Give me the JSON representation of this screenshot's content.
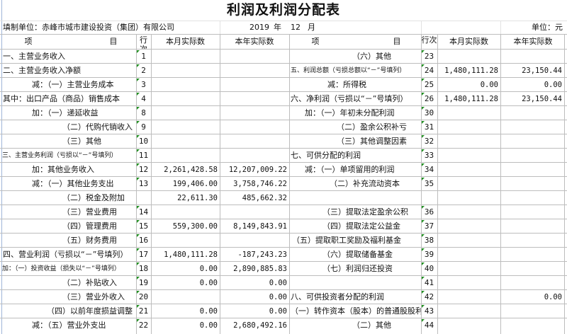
{
  "title": "利润及利润分配表",
  "info": {
    "company": "填制单位：赤峰市城市建设投资（集团）有限公司",
    "year": "2019",
    "year_label": "年",
    "month": "12",
    "month_label": "月",
    "unit": "单位：元"
  },
  "headers": {
    "item_left": "项",
    "item_right": "目",
    "row_no": "行次",
    "month_actual": "本月实际数",
    "year_actual": "本年实际数"
  },
  "left_rows": [
    {
      "label": "一、主营业务收入",
      "no": "1",
      "month": "",
      "year": ""
    },
    {
      "label": "二、主营业务收入净额",
      "no": "2",
      "month": "",
      "year": ""
    },
    {
      "label": "减：（一）主营业务成本",
      "no": "3",
      "month": "",
      "year": ""
    },
    {
      "label": "其中：出口产品（商品）销售成本",
      "no": "4",
      "month": "",
      "year": ""
    },
    {
      "label": "加：（一）递延收益",
      "no": "8",
      "month": "",
      "year": ""
    },
    {
      "label": "（二）代购代销收入",
      "no": "9",
      "month": "",
      "year": ""
    },
    {
      "label": "（三）其他",
      "no": "10",
      "month": "",
      "year": ""
    },
    {
      "label": "三、主营业务利润（亏损以“－”号填列）",
      "no": "11",
      "month": "",
      "year": ""
    },
    {
      "label": "加：其他业务收入",
      "no": "12",
      "month": "2,261,428.58",
      "year": "12,207,009.22"
    },
    {
      "label": "减：（一）其他业务支出",
      "no": "13",
      "month": "199,406.00",
      "year": "3,758,746.22"
    },
    {
      "label": "（二）税金及附加",
      "no": "",
      "month": "22,611.30",
      "year": "485,662.32"
    },
    {
      "label": "（三）营业费用",
      "no": "14",
      "month": "",
      "year": ""
    },
    {
      "label": "（四）管理费用",
      "no": "15",
      "month": "559,300.00",
      "year": "8,149,843.91"
    },
    {
      "label": "（五）财务费用",
      "no": "16",
      "month": "",
      "year": ""
    },
    {
      "label": "四、营业利润（亏损以“－”号填列）",
      "no": "17",
      "month": "1,480,111.28",
      "year": "-187,243.23"
    },
    {
      "label": "加：（一）投资收益（损失以“－”号填列）",
      "no": "18",
      "month": "0.00",
      "year": "2,890,885.83"
    },
    {
      "label": "（二）补贴收入",
      "no": "19",
      "month": "0.00",
      "year": "0.00"
    },
    {
      "label": "（三）营业外收入",
      "no": "20",
      "month": "",
      "year": "0.00"
    },
    {
      "label": "（四）以前年度损益调整",
      "no": "21",
      "month": "0.00",
      "year": "0.00"
    },
    {
      "label": "减：（五）营业外支出",
      "no": "22",
      "month": "0.00",
      "year": "2,680,492.16"
    }
  ],
  "right_rows": [
    {
      "label": "（六）其他",
      "no": "23",
      "month": "",
      "year": ""
    },
    {
      "label": "五、利润总额（亏损总额以“－”号填列）",
      "no": "24",
      "month": "1,480,111.28",
      "year": "23,150.44"
    },
    {
      "label": "减：所得税",
      "no": "25",
      "month": "0.00",
      "year": "0.00"
    },
    {
      "label": "六、净利润（亏损以“－”号填列）",
      "no": "26",
      "month": "1,480,111.28",
      "year": "23,150.44"
    },
    {
      "label": "加：（一）年初未分配利润",
      "no": "30",
      "month": "",
      "year": ""
    },
    {
      "label": "（二）盈余公积补亏",
      "no": "31",
      "month": "",
      "year": ""
    },
    {
      "label": "（三）其他调整因素",
      "no": "32",
      "month": "",
      "year": ""
    },
    {
      "label": "七、可供分配的利润",
      "no": "33",
      "month": "",
      "year": ""
    },
    {
      "label": "减：（一）单项留用的利润",
      "no": "34",
      "month": "",
      "year": ""
    },
    {
      "label": "（二）补充流动资本",
      "no": "35",
      "month": "",
      "year": ""
    },
    {
      "label": "",
      "no": "",
      "month": "",
      "year": ""
    },
    {
      "label": "（三）提取法定盈余公积",
      "no": "36",
      "month": "",
      "year": ""
    },
    {
      "label": "（四）提取法定公益金",
      "no": "37",
      "month": "",
      "year": ""
    },
    {
      "label": "（五）提取职工奖励及福利基金",
      "no": "38",
      "month": "",
      "year": ""
    },
    {
      "label": "（六）提取储备基金",
      "no": "39",
      "month": "",
      "year": ""
    },
    {
      "label": "（七）利润归还投资",
      "no": "40",
      "month": "",
      "year": ""
    },
    {
      "label": "",
      "no": "41",
      "month": "",
      "year": ""
    },
    {
      "label": "八、可供投资者分配的利润",
      "no": "42",
      "month": "",
      "year": "0.00"
    },
    {
      "label": "（一）转作资本（股本）的普通股股利",
      "no": "43",
      "month": "",
      "year": ""
    },
    {
      "label": "（二）其他",
      "no": "44",
      "month": "",
      "year": ""
    }
  ],
  "colors": {
    "grid": "#bdbdbd",
    "comment_marker": "#1f8f1f"
  }
}
